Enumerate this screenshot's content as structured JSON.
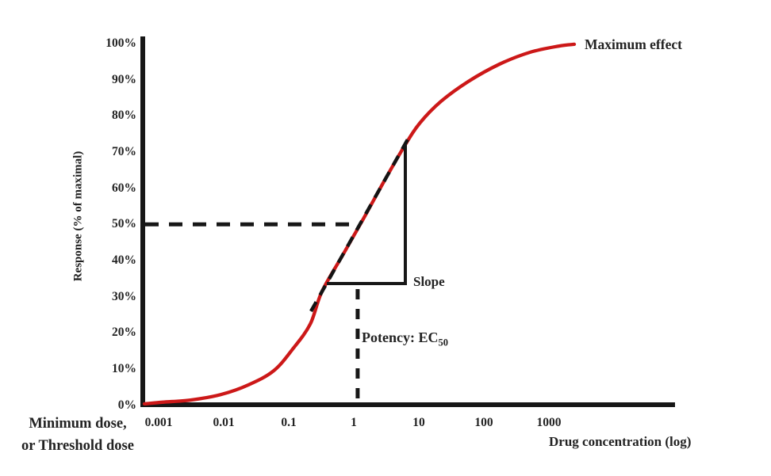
{
  "chart_data": {
    "type": "line",
    "title": "",
    "xlabel": "Drug concentration (log)",
    "ylabel": "Response (% of maximal)",
    "x_scale": "log10",
    "grid": false,
    "legend": "none",
    "x_tick_labels": [
      "0.001",
      "0.01",
      "0.1",
      "1",
      "10",
      "100",
      "1000"
    ],
    "y_tick_labels": [
      "100%",
      "90%",
      "80%",
      "70%",
      "60%",
      "50%",
      "40%",
      "30%",
      "20%",
      "10%",
      "0%"
    ],
    "y_range_pct": [
      0,
      100
    ],
    "series": [
      {
        "name": "dose-response sigmoid curve",
        "color": "#cc1818",
        "points_log10conc_pct": [
          [
            -3.22,
            0.35
          ],
          [
            -2.94,
            0.8
          ],
          [
            -2.51,
            1.4
          ],
          [
            -2.05,
            2.9
          ],
          [
            -1.62,
            5.6
          ],
          [
            -1.23,
            9.5
          ],
          [
            -0.93,
            15.7
          ],
          [
            -0.67,
            22.4
          ],
          [
            -0.49,
            31.4
          ],
          [
            -0.17,
            41.5
          ],
          [
            0.15,
            51.6
          ],
          [
            0.46,
            61.7
          ],
          [
            0.78,
            71.7
          ],
          [
            1.02,
            78.1
          ],
          [
            1.34,
            84.0
          ],
          [
            1.76,
            89.5
          ],
          [
            2.24,
            94.3
          ],
          [
            2.71,
            97.6
          ],
          [
            3.15,
            99.3
          ],
          [
            3.39,
            99.8
          ]
        ]
      }
    ],
    "annotations": {
      "maximum_effect_label": "Maximum effect",
      "slope_label": "Slope",
      "potency_prefix": "Potency: EC",
      "potency_subscript": "50",
      "min_dose_line1": "Minimum dose,",
      "min_dose_line2": "or Threshold dose",
      "ec50_log10_conc": 0.06,
      "half_maximal_response_pct": 50
    }
  },
  "colors": {
    "curve_red": "#cc1818",
    "axis_black": "#171717",
    "text": "#222222",
    "background": "#ffffff"
  }
}
